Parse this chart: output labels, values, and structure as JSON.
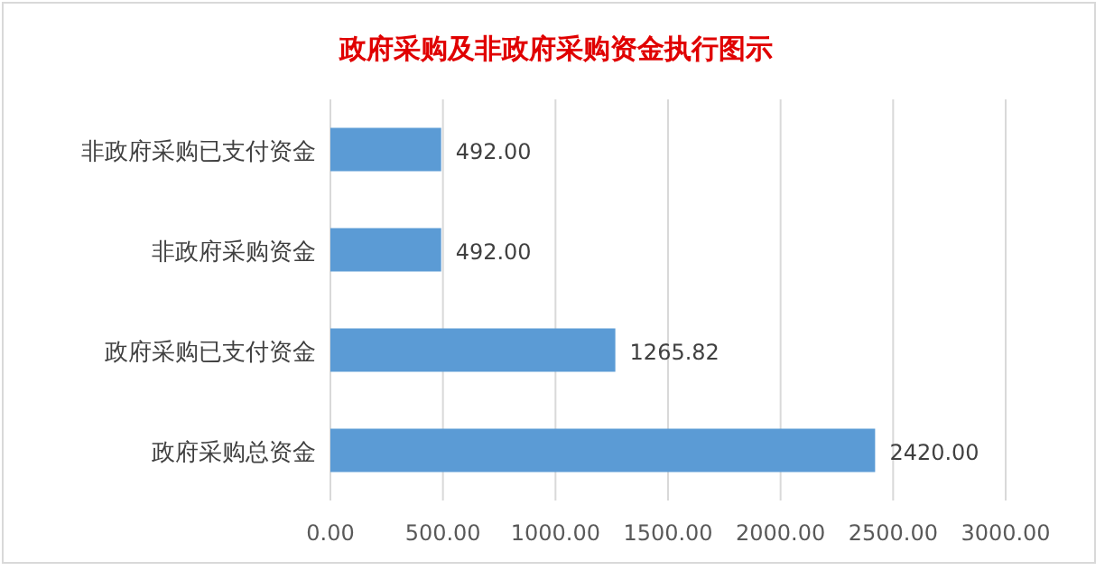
{
  "chart_data": {
    "type": "bar",
    "orientation": "horizontal",
    "title": "政府采购及非政府采购资金执行图示",
    "categories": [
      "非政府采购已支付资金",
      "非政府采购资金",
      "政府采购已支付资金",
      "政府采购总资金"
    ],
    "values": [
      492,
      492,
      1265.82,
      2420
    ],
    "value_labels": [
      "492.00",
      "492.00",
      "1265.82",
      "2420.00"
    ],
    "color": "#5b9bd5",
    "xlim": [
      0,
      3000
    ],
    "xticks": [
      {
        "value": 0,
        "label": "0.00"
      },
      {
        "value": 500,
        "label": "500.00"
      },
      {
        "value": 1000,
        "label": "1000.00"
      },
      {
        "value": 1500,
        "label": "1500.00"
      },
      {
        "value": 2000,
        "label": "2000.00"
      },
      {
        "value": 2500,
        "label": "2500.00"
      },
      {
        "value": 3000,
        "label": "3000.00"
      }
    ],
    "grid": "x"
  }
}
